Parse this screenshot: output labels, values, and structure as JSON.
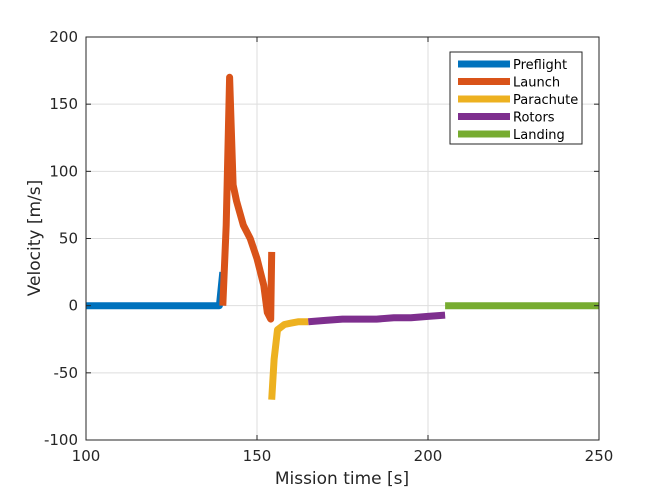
{
  "chart_data": {
    "type": "line",
    "title": "",
    "xlabel": "Mission time [s]",
    "ylabel": "Velocity [m/s]",
    "xlim": [
      100,
      250
    ],
    "ylim": [
      -100,
      200
    ],
    "xticks": [
      100,
      150,
      200,
      250
    ],
    "yticks": [
      -100,
      -50,
      0,
      50,
      100,
      150,
      200
    ],
    "grid": true,
    "legend_position": "top-right",
    "series": [
      {
        "name": "Preflight",
        "color": "#0072BD",
        "x": [
          100,
          105,
          110,
          115,
          120,
          125,
          130,
          135,
          139,
          140
        ],
        "y": [
          0,
          0,
          0,
          0,
          0,
          0,
          0,
          0,
          0,
          25
        ]
      },
      {
        "name": "Launch",
        "color": "#D95319",
        "x": [
          140,
          141,
          142,
          143,
          144,
          146,
          148,
          150,
          152,
          153,
          154,
          154.3
        ],
        "y": [
          0,
          60,
          170,
          90,
          78,
          60,
          50,
          35,
          15,
          -5,
          -10,
          40
        ]
      },
      {
        "name": "Parachute",
        "color": "#EDB120",
        "x": [
          154.3,
          155,
          156,
          158,
          160,
          162,
          165
        ],
        "y": [
          -70,
          -40,
          -18,
          -14,
          -13,
          -12,
          -12
        ]
      },
      {
        "name": "Rotors",
        "color": "#7E2F8E",
        "x": [
          165,
          170,
          175,
          180,
          185,
          190,
          195,
          200,
          205
        ],
        "y": [
          -12,
          -11,
          -10,
          -10,
          -10,
          -9,
          -9,
          -8,
          -7
        ]
      },
      {
        "name": "Landing",
        "color": "#77AC30",
        "x": [
          205,
          210,
          215,
          220,
          225,
          230,
          235,
          240,
          245,
          250
        ],
        "y": [
          0,
          0,
          0,
          0,
          0,
          0,
          0,
          0,
          0,
          0
        ]
      }
    ]
  }
}
